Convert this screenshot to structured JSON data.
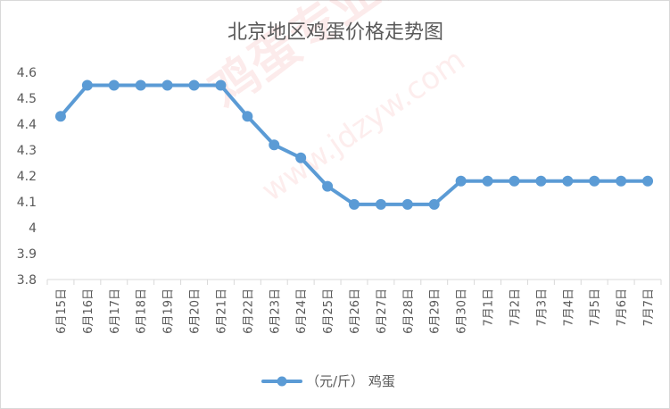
{
  "chart_data": {
    "type": "line",
    "title": "北京地区鸡蛋价格走势图",
    "categories": [
      "6月15日",
      "6月16日",
      "6月17日",
      "6月18日",
      "6月19日",
      "6月20日",
      "6月21日",
      "6月22日",
      "6月23日",
      "6月24日",
      "6月25日",
      "6月26日",
      "6月27日",
      "6月28日",
      "6月29日",
      "6月30日",
      "7月1日",
      "7月2日",
      "7月3日",
      "7月4日",
      "7月5日",
      "7月6日",
      "7月7日"
    ],
    "series": [
      {
        "name": "（元/斤） 鸡蛋",
        "color": "#5b9bd5",
        "values": [
          4.43,
          4.55,
          4.55,
          4.55,
          4.55,
          4.55,
          4.55,
          4.43,
          4.32,
          4.27,
          4.16,
          4.09,
          4.09,
          4.09,
          4.09,
          4.18,
          4.18,
          4.18,
          4.18,
          4.18,
          4.18,
          4.18,
          4.18
        ]
      }
    ],
    "ylim": [
      3.8,
      4.6
    ],
    "yticks": [
      "3.8",
      "3.9",
      "4",
      "4.1",
      "4.2",
      "4.3",
      "4.4",
      "4.5",
      "4.6"
    ],
    "ytick_values": [
      3.8,
      3.9,
      4.0,
      4.1,
      4.2,
      4.3,
      4.4,
      4.5,
      4.6
    ],
    "grid": false,
    "legend_position": "bottom"
  },
  "watermark": {
    "brand": "鸡蛋专业网",
    "url": "www.jdzyw.com"
  }
}
